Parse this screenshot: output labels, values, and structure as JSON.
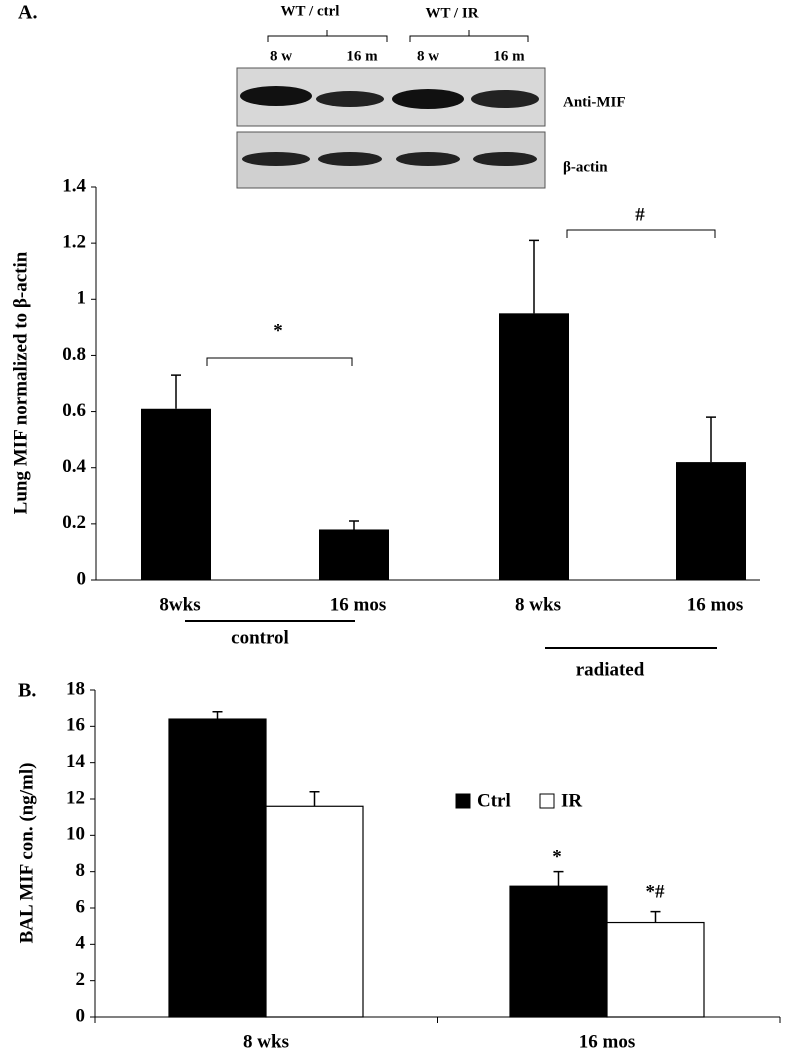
{
  "blot": {
    "groups": [
      "WT /  ctrl",
      "WT / IR"
    ],
    "lanes": [
      "8 w",
      "16 m",
      "8 w",
      "16 m"
    ],
    "rows": [
      "Anti-MIF",
      "β-actin"
    ]
  },
  "chart_data": [
    {
      "type": "bar",
      "panel_label": "A.",
      "y_label": "Lung MIF  normalized to β-actin",
      "categories": [
        "8wks",
        "16 mos",
        "8 wks",
        "16 mos"
      ],
      "groups": [
        "control",
        "radiated"
      ],
      "values": [
        0.61,
        0.18,
        0.95,
        0.42
      ],
      "errors": [
        0.12,
        0.03,
        0.26,
        0.16
      ],
      "color": "#000000",
      "annotations": [
        "*",
        "#"
      ],
      "ylim": [
        0,
        1.4
      ],
      "yticks": [
        0,
        0.2,
        0.4,
        0.6,
        0.8,
        1,
        1.2,
        1.4
      ]
    },
    {
      "type": "grouped_bar",
      "panel_label": "B.",
      "y_label": "BAL MIF con. (ng/ml)",
      "categories": [
        "8 wks",
        "16 mos"
      ],
      "series": [
        {
          "name": "Ctrl",
          "color": "#000000",
          "values": [
            16.4,
            7.2
          ],
          "errors": [
            0.4,
            0.8
          ]
        },
        {
          "name": "IR",
          "color": "#ffffff",
          "values": [
            11.6,
            5.2
          ],
          "errors": [
            0.8,
            0.6
          ]
        }
      ],
      "annotations": [
        "*",
        "*#"
      ],
      "ylim": [
        0,
        18
      ],
      "yticks": [
        0,
        2,
        4,
        6,
        8,
        10,
        12,
        14,
        16,
        18
      ]
    }
  ]
}
